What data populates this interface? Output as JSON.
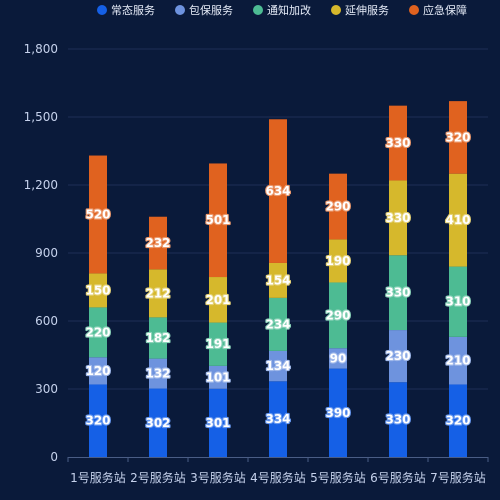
{
  "chart_data": {
    "type": "bar",
    "stacked": true,
    "categories": [
      "1号服务站",
      "2号服务站",
      "3号服务站",
      "4号服务站",
      "5号服务站",
      "6号服务站",
      "7号服务站"
    ],
    "series": [
      {
        "name": "常态服务",
        "color": "#1560e6",
        "values": [
          320,
          302,
          301,
          334,
          390,
          330,
          320
        ]
      },
      {
        "name": "包保服务",
        "color": "#6e93de",
        "values": [
          120,
          132,
          101,
          134,
          90,
          230,
          210
        ]
      },
      {
        "name": "通知加改",
        "color": "#4dbb93",
        "values": [
          220,
          182,
          191,
          234,
          290,
          330,
          310
        ]
      },
      {
        "name": "延伸服务",
        "color": "#d6b82c",
        "values": [
          150,
          212,
          201,
          154,
          190,
          330,
          410
        ]
      },
      {
        "name": "应急保障",
        "color": "#e0621f",
        "values": [
          520,
          232,
          501,
          634,
          290,
          330,
          320
        ]
      }
    ],
    "ylim": [
      0,
      1800
    ],
    "yticks": [
      "0",
      "300",
      "600",
      "900",
      "1,200",
      "1,500",
      "1,800"
    ],
    "grid": true,
    "legend_position": "top-right",
    "title": "",
    "xlabel": "",
    "ylabel": ""
  },
  "colors": {
    "background": "#0a1a3a",
    "grid": "#1d2f55",
    "axis": "#4a5d85"
  }
}
